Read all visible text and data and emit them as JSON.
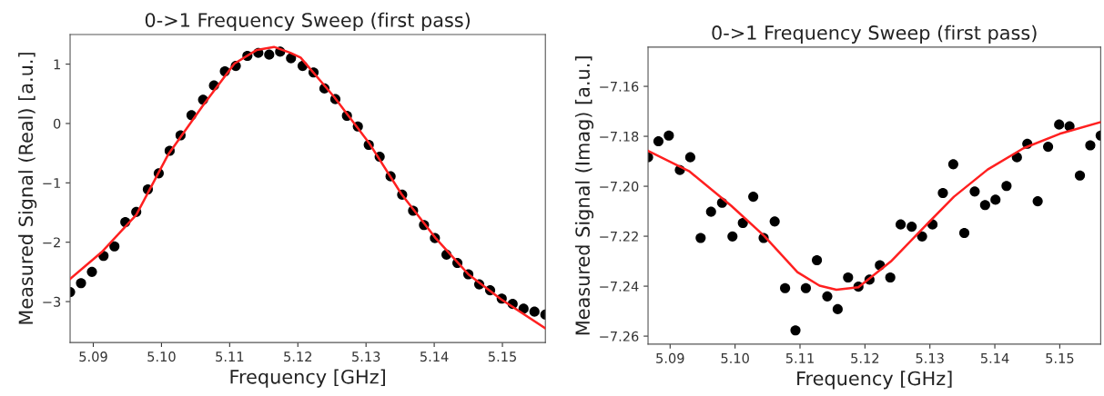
{
  "chart_data": [
    {
      "type": "scatter",
      "title": "0->1 Frequency Sweep (first pass)",
      "xlabel": "Frequency [GHz]",
      "ylabel": "Measured Signal (Real) [a.u.]",
      "marker": "circle",
      "x": [
        5.0866,
        5.0882,
        5.0898,
        5.0915,
        5.0931,
        5.0947,
        5.0963,
        5.098,
        5.0996,
        5.1012,
        5.1028,
        5.1044,
        5.1061,
        5.1077,
        5.1093,
        5.1109,
        5.1126,
        5.1142,
        5.1158,
        5.1174,
        5.119,
        5.1207,
        5.1223,
        5.1239,
        5.1255,
        5.1272,
        5.1288,
        5.1304,
        5.132,
        5.1336,
        5.1353,
        5.1369,
        5.1385,
        5.1401,
        5.1418,
        5.1434,
        5.145,
        5.1466,
        5.1482,
        5.1499,
        5.1515,
        5.1531,
        5.1547,
        5.1563
      ],
      "xlim": [
        5.0866,
        5.1563
      ],
      "xticks": [
        5.09,
        {
          "value": 5.1,
          "label": "5.10"
        },
        5.11,
        5.12,
        5.13,
        5.14,
        5.15
      ],
      "ylim": [
        -3.69,
        1.5
      ],
      "yticks": [
        {
          "value": -3,
          "label": "−3"
        },
        {
          "value": -2,
          "label": "−2"
        },
        {
          "value": -1,
          "label": "−1"
        },
        0,
        1
      ],
      "series": [
        {
          "color": "#000000",
          "values": [
            -2.84,
            -2.69,
            -2.5,
            -2.23,
            -2.07,
            -1.66,
            -1.49,
            -1.11,
            -0.84,
            -0.46,
            -0.2,
            0.14,
            0.4,
            0.64,
            0.88,
            0.97,
            1.14,
            1.19,
            1.16,
            1.21,
            1.1,
            0.97,
            0.86,
            0.59,
            0.41,
            0.13,
            -0.05,
            -0.36,
            -0.56,
            -0.89,
            -1.2,
            -1.47,
            -1.71,
            -1.93,
            -2.21,
            -2.35,
            -2.54,
            -2.71,
            -2.81,
            -2.95,
            -3.04,
            -3.12,
            -3.17,
            -3.22
          ]
        },
        {
          "type": "line",
          "color": "#ff2020",
          "marker": "none",
          "x": [
            5.0866,
            5.0912,
            5.0963,
            5.101,
            5.106,
            5.1107,
            5.114,
            5.1165,
            5.1189,
            5.1204,
            5.1253,
            5.1304,
            5.1352,
            5.1402,
            5.145,
            5.1498,
            5.1563
          ],
          "values": [
            -2.62,
            -2.17,
            -1.54,
            -0.52,
            0.29,
            1.01,
            1.24,
            1.29,
            1.19,
            1.11,
            0.45,
            -0.32,
            -1.19,
            -1.93,
            -2.54,
            -2.96,
            -3.45
          ]
        }
      ]
    },
    {
      "type": "scatter",
      "title": "0->1 Frequency Sweep (first pass)",
      "xlabel": "Frequency [GHz]",
      "ylabel": "Measured Signal (Imag) [a.u.]",
      "marker": "circle",
      "x": [
        5.0866,
        5.0882,
        5.0898,
        5.0915,
        5.0931,
        5.0947,
        5.0963,
        5.098,
        5.0996,
        5.1012,
        5.1028,
        5.1044,
        5.1061,
        5.1077,
        5.1093,
        5.1109,
        5.1126,
        5.1142,
        5.1158,
        5.1174,
        5.119,
        5.1207,
        5.1223,
        5.1239,
        5.1255,
        5.1272,
        5.1288,
        5.1304,
        5.132,
        5.1336,
        5.1353,
        5.1369,
        5.1385,
        5.1401,
        5.1418,
        5.1434,
        5.145,
        5.1466,
        5.1482,
        5.1499,
        5.1515,
        5.1531,
        5.1547,
        5.1563
      ],
      "xlim": [
        5.0866,
        5.1563
      ],
      "xticks": [
        5.09,
        {
          "value": 5.1,
          "label": "5.10"
        },
        5.11,
        5.12,
        5.13,
        5.14,
        5.15
      ],
      "ylim": [
        -7.2632,
        -7.1443
      ],
      "yticks": [
        {
          "value": -7.26,
          "label": "−7.26"
        },
        {
          "value": -7.24,
          "label": "−7.24"
        },
        {
          "value": -7.22,
          "label": "−7.22"
        },
        {
          "value": -7.2,
          "label": "−7.20"
        },
        {
          "value": -7.18,
          "label": "−7.18"
        },
        {
          "value": -7.16,
          "label": "−7.16"
        }
      ],
      "series": [
        {
          "color": "#000000",
          "values": [
            -7.1884,
            -7.182,
            -7.1797,
            -7.1935,
            -7.1884,
            -7.2207,
            -7.2102,
            -7.2066,
            -7.2201,
            -7.2147,
            -7.2042,
            -7.2207,
            -7.2141,
            -7.2408,
            -7.2577,
            -7.2408,
            -7.2296,
            -7.2441,
            -7.2492,
            -7.2365,
            -7.2402,
            -7.2374,
            -7.2316,
            -7.2365,
            -7.2153,
            -7.2162,
            -7.2201,
            -7.2153,
            -7.2027,
            -7.1912,
            -7.2187,
            -7.2021,
            -7.2075,
            -7.2054,
            -7.1999,
            -7.1884,
            -7.183,
            -7.206,
            -7.1842,
            -7.1753,
            -7.176,
            -7.1957,
            -7.1836,
            -7.1797
          ]
        },
        {
          "type": "line",
          "color": "#ff2020",
          "marker": "none",
          "x": [
            5.0866,
            5.0929,
            5.0994,
            5.1045,
            5.1096,
            5.113,
            5.1156,
            5.119,
            5.124,
            5.1289,
            5.1337,
            5.1389,
            5.1444,
            5.15,
            5.1563
          ],
          "values": [
            -7.1858,
            -7.1939,
            -7.2078,
            -7.2199,
            -7.2344,
            -7.2398,
            -7.2414,
            -7.2404,
            -7.2301,
            -7.2169,
            -7.2042,
            -7.1933,
            -7.1848,
            -7.179,
            -7.1743
          ]
        }
      ]
    }
  ]
}
